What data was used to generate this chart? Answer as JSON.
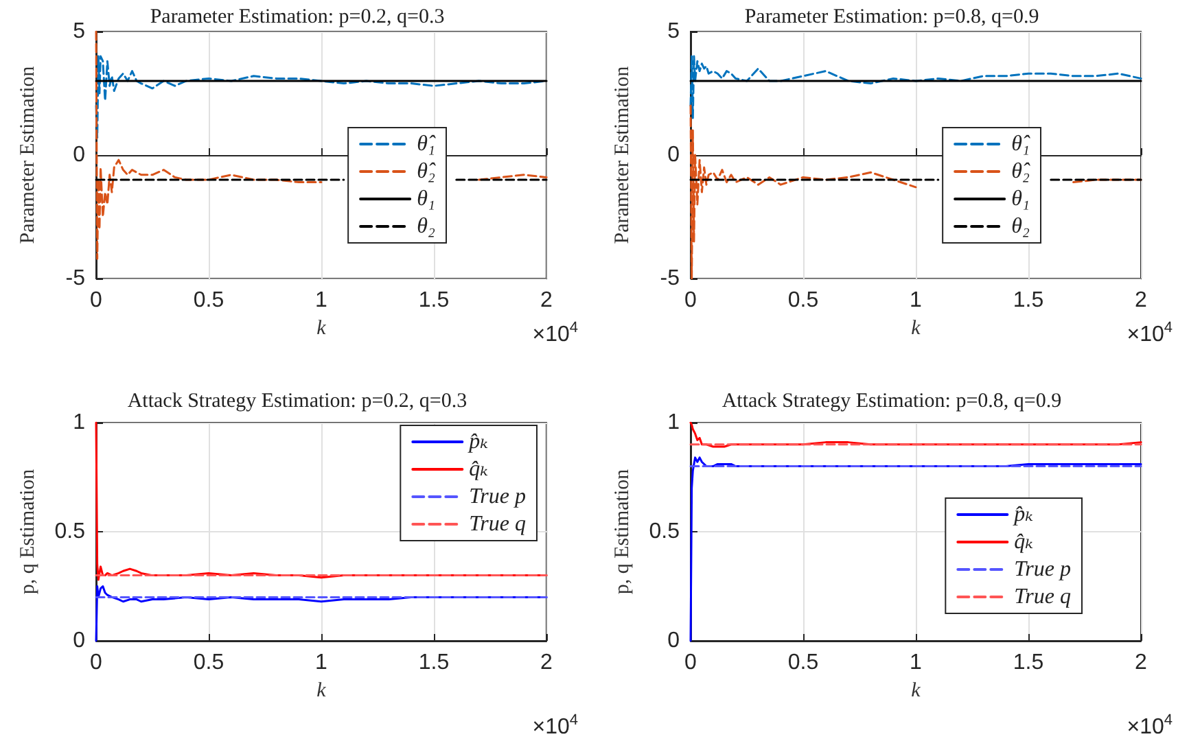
{
  "chart_data": [
    {
      "type": "line",
      "title": "Parameter Estimation: p=0.2, q=0.3",
      "xlabel": "k",
      "ylabel": "Parameter Estimation",
      "annotations": [
        "×10$^{4}$"
      ],
      "xlim": [
        0,
        2
      ],
      "xticks": [
        0,
        0.5,
        1,
        1.5,
        2
      ],
      "ylim": [
        -5,
        5
      ],
      "yticks": [
        -5,
        0,
        5
      ],
      "grid": true,
      "legend": "right",
      "marker": "none",
      "x": [
        0,
        0.005,
        0.01,
        0.015,
        0.02,
        0.03,
        0.04,
        0.05,
        0.06,
        0.07,
        0.08,
        0.1,
        0.12,
        0.14,
        0.16,
        0.18,
        0.2,
        0.25,
        0.3,
        0.35,
        0.4,
        0.5,
        0.6,
        0.7,
        0.8,
        0.9,
        1,
        1.1,
        1.2,
        1.3,
        1.4,
        1.5,
        1.6,
        1.7,
        1.8,
        1.9,
        2
      ],
      "series": [
        {
          "name": "θ̂₁",
          "color": "#0072bd",
          "line_style": "dashed",
          "values": [
            2,
            0.7,
            4,
            2.5,
            4,
            3.8,
            2.2,
            3.8,
            2.8,
            3.2,
            2.6,
            3.1,
            3.3,
            3.0,
            3.4,
            3.0,
            2.9,
            2.7,
            3.0,
            2.8,
            3.0,
            3.1,
            3.0,
            3.2,
            3.1,
            3.1,
            3.0,
            2.9,
            3.0,
            2.9,
            2.9,
            2.8,
            2.9,
            3.0,
            2.9,
            2.9,
            3.0
          ]
        },
        {
          "name": "θ̂₂",
          "color": "#d95319",
          "line_style": "dashed",
          "values": [
            5,
            -4.2,
            -1,
            -3,
            -0.5,
            -2.5,
            -1.5,
            -2,
            -0.8,
            -1.5,
            -0.5,
            -0.2,
            -0.6,
            -0.8,
            -0.6,
            -0.7,
            -0.8,
            -0.8,
            -0.6,
            -0.9,
            -1.0,
            -1.0,
            -0.8,
            -1.0,
            -1.0,
            -1.1,
            -1.1,
            null,
            null,
            null,
            null,
            null,
            null,
            -1.0,
            -0.9,
            -0.8,
            -0.9
          ]
        },
        {
          "name": "θ₁",
          "color": "#000000",
          "line_style": "solid",
          "values": [
            3,
            3,
            3,
            3,
            3,
            3,
            3,
            3,
            3,
            3,
            3,
            3,
            3,
            3,
            3,
            3,
            3,
            3,
            3,
            3,
            3,
            3,
            3,
            3,
            3,
            3,
            3,
            3,
            3,
            3,
            3,
            3,
            3,
            3,
            3,
            3,
            3
          ]
        },
        {
          "name": "θ₂",
          "color": "#000000",
          "line_style": "dashed",
          "values": [
            -1,
            -1,
            -1,
            -1,
            -1,
            -1,
            -1,
            -1,
            -1,
            -1,
            -1,
            -1,
            -1,
            -1,
            -1,
            -1,
            -1,
            -1,
            -1,
            -1,
            -1,
            -1,
            -1,
            -1,
            -1,
            -1,
            -1,
            -1,
            null,
            null,
            null,
            null,
            -1,
            -1,
            -1,
            -1,
            -1
          ]
        }
      ]
    },
    {
      "type": "line",
      "title": "Parameter Estimation: p=0.8, q=0.9",
      "xlabel": "k",
      "ylabel": "Parameter Estimation",
      "annotations": [
        "×10$^{4}$"
      ],
      "xlim": [
        0,
        2
      ],
      "xticks": [
        0,
        0.5,
        1,
        1.5,
        2
      ],
      "ylim": [
        -5,
        5
      ],
      "yticks": [
        -5,
        0,
        5
      ],
      "grid": true,
      "legend": "right",
      "marker": "none",
      "x": [
        0,
        0.005,
        0.01,
        0.015,
        0.02,
        0.03,
        0.04,
        0.05,
        0.06,
        0.07,
        0.08,
        0.1,
        0.12,
        0.14,
        0.16,
        0.18,
        0.2,
        0.25,
        0.3,
        0.35,
        0.4,
        0.5,
        0.6,
        0.7,
        0.8,
        0.9,
        1,
        1.1,
        1.2,
        1.3,
        1.4,
        1.5,
        1.6,
        1.7,
        1.8,
        1.9,
        2
      ],
      "series": [
        {
          "name": "θ̂₁",
          "color": "#0072bd",
          "line_style": "dashed",
          "values": [
            2,
            4,
            1.5,
            4,
            3,
            3.8,
            3.4,
            3.7,
            3.5,
            3.6,
            3.3,
            3.4,
            3.3,
            3.1,
            3.4,
            3.3,
            3.1,
            3.0,
            3.5,
            3.0,
            3.0,
            3.2,
            3.4,
            3.0,
            2.9,
            3.1,
            3.0,
            3.1,
            3.0,
            3.2,
            3.2,
            3.3,
            3.3,
            3.2,
            3.2,
            3.3,
            3.1
          ]
        },
        {
          "name": "θ̂₂",
          "color": "#d95319",
          "line_style": "dashed",
          "values": [
            2,
            -5,
            1,
            -3.5,
            0,
            -2,
            -0.2,
            -1.5,
            -0.5,
            -1.2,
            -0.8,
            -0.7,
            -1.0,
            -0.6,
            -1.1,
            -0.8,
            -1.1,
            -0.9,
            -1.2,
            -0.9,
            -1.2,
            -0.9,
            -1.0,
            -0.9,
            -0.7,
            -1.0,
            -1.3,
            null,
            null,
            null,
            null,
            null,
            null,
            -1.1,
            -1.0,
            -1.0,
            -1.0
          ]
        },
        {
          "name": "θ₁",
          "color": "#000000",
          "line_style": "solid",
          "values": [
            3,
            3,
            3,
            3,
            3,
            3,
            3,
            3,
            3,
            3,
            3,
            3,
            3,
            3,
            3,
            3,
            3,
            3,
            3,
            3,
            3,
            3,
            3,
            3,
            3,
            3,
            3,
            3,
            3,
            3,
            3,
            3,
            3,
            3,
            3,
            3,
            3
          ]
        },
        {
          "name": "θ₂",
          "color": "#000000",
          "line_style": "dashed",
          "values": [
            -1,
            -1,
            -1,
            -1,
            -1,
            -1,
            -1,
            -1,
            -1,
            -1,
            -1,
            -1,
            -1,
            -1,
            -1,
            -1,
            -1,
            -1,
            -1,
            -1,
            -1,
            -1,
            -1,
            -1,
            -1,
            -1,
            -1,
            -1,
            null,
            null,
            null,
            null,
            -1,
            -1,
            -1,
            -1,
            -1
          ]
        }
      ]
    },
    {
      "type": "line",
      "title": "Attack Strategy Estimation: p=0.2, q=0.3",
      "xlabel": "k",
      "ylabel": "p, q Estimation",
      "annotations": [
        "×10$^{4}$"
      ],
      "xlim": [
        0,
        2
      ],
      "xticks": [
        0,
        0.5,
        1,
        1.5,
        2
      ],
      "ylim": [
        0,
        1
      ],
      "yticks": [
        0,
        0.5,
        1
      ],
      "grid": true,
      "legend": "top right",
      "marker": "none",
      "x": [
        0,
        0.005,
        0.01,
        0.02,
        0.03,
        0.04,
        0.05,
        0.07,
        0.1,
        0.12,
        0.15,
        0.18,
        0.2,
        0.25,
        0.3,
        0.4,
        0.5,
        0.6,
        0.7,
        0.8,
        0.9,
        1,
        1.1,
        1.2,
        1.3,
        1.4,
        1.5,
        1.6,
        1.7,
        1.8,
        1.9,
        2
      ],
      "series": [
        {
          "name": "p̂ₖ",
          "color": "#0000ff",
          "line_style": "solid",
          "values": [
            0,
            0.25,
            0.2,
            0.24,
            0.25,
            0.22,
            0.21,
            0.2,
            0.19,
            0.18,
            0.19,
            0.19,
            0.18,
            0.19,
            0.19,
            0.2,
            0.19,
            0.2,
            0.19,
            0.19,
            0.19,
            0.18,
            0.19,
            0.19,
            0.19,
            0.2,
            0.2,
            0.2,
            0.2,
            0.2,
            0.2,
            0.2
          ]
        },
        {
          "name": "q̂ₖ",
          "color": "#ff0000",
          "line_style": "solid",
          "values": [
            1,
            0.35,
            0.28,
            0.34,
            0.3,
            0.3,
            0.31,
            0.3,
            0.31,
            0.32,
            0.33,
            0.32,
            0.31,
            0.3,
            0.3,
            0.3,
            0.31,
            0.3,
            0.31,
            0.3,
            0.3,
            0.29,
            0.3,
            0.3,
            0.3,
            0.3,
            0.3,
            0.3,
            0.3,
            0.3,
            0.3,
            0.3
          ]
        },
        {
          "name": "True p",
          "color": "#5555ff",
          "line_style": "dashed",
          "values": [
            0.2,
            0.2,
            0.2,
            0.2,
            0.2,
            0.2,
            0.2,
            0.2,
            0.2,
            0.2,
            0.2,
            0.2,
            0.2,
            0.2,
            0.2,
            0.2,
            0.2,
            0.2,
            0.2,
            0.2,
            0.2,
            0.2,
            0.2,
            0.2,
            0.2,
            0.2,
            0.2,
            0.2,
            0.2,
            0.2,
            0.2,
            0.2
          ]
        },
        {
          "name": "True q",
          "color": "#ff5555",
          "line_style": "dashed",
          "values": [
            0.3,
            0.3,
            0.3,
            0.3,
            0.3,
            0.3,
            0.3,
            0.3,
            0.3,
            0.3,
            0.3,
            0.3,
            0.3,
            0.3,
            0.3,
            0.3,
            0.3,
            0.3,
            0.3,
            0.3,
            0.3,
            0.3,
            0.3,
            0.3,
            0.3,
            0.3,
            0.3,
            0.3,
            0.3,
            0.3,
            0.3,
            0.3
          ]
        }
      ]
    },
    {
      "type": "line",
      "title": "Attack Strategy Estimation: p=0.8, q=0.9",
      "xlabel": "k",
      "ylabel": "p, q Estimation",
      "annotations": [
        "×10$^{4}$"
      ],
      "xlim": [
        0,
        2
      ],
      "xticks": [
        0,
        0.5,
        1,
        1.5,
        2
      ],
      "ylim": [
        0,
        1
      ],
      "yticks": [
        0,
        0.5,
        1
      ],
      "grid": true,
      "legend": "right",
      "marker": "none",
      "x": [
        0,
        0.005,
        0.01,
        0.02,
        0.03,
        0.04,
        0.05,
        0.07,
        0.1,
        0.12,
        0.15,
        0.18,
        0.2,
        0.25,
        0.3,
        0.4,
        0.5,
        0.6,
        0.7,
        0.8,
        0.9,
        1,
        1.1,
        1.2,
        1.3,
        1.4,
        1.5,
        1.6,
        1.7,
        1.8,
        1.9,
        2
      ],
      "series": [
        {
          "name": "p̂ₖ",
          "color": "#0000ff",
          "line_style": "solid",
          "values": [
            0,
            0.7,
            0.78,
            0.84,
            0.82,
            0.84,
            0.82,
            0.8,
            0.8,
            0.81,
            0.81,
            0.81,
            0.8,
            0.8,
            0.8,
            0.8,
            0.8,
            0.8,
            0.8,
            0.8,
            0.8,
            0.8,
            0.8,
            0.8,
            0.8,
            0.8,
            0.81,
            0.81,
            0.81,
            0.81,
            0.81,
            0.81
          ]
        },
        {
          "name": "q̂ₖ",
          "color": "#ff0000",
          "line_style": "solid",
          "values": [
            1,
            0.99,
            0.97,
            0.95,
            0.92,
            0.93,
            0.9,
            0.9,
            0.89,
            0.89,
            0.89,
            0.9,
            0.9,
            0.9,
            0.9,
            0.9,
            0.9,
            0.91,
            0.91,
            0.9,
            0.9,
            0.9,
            0.9,
            0.9,
            0.9,
            0.9,
            0.9,
            0.9,
            0.9,
            0.9,
            0.9,
            0.91
          ]
        },
        {
          "name": "True p",
          "color": "#5555ff",
          "line_style": "dashed",
          "values": [
            0.8,
            0.8,
            0.8,
            0.8,
            0.8,
            0.8,
            0.8,
            0.8,
            0.8,
            0.8,
            0.8,
            0.8,
            0.8,
            0.8,
            0.8,
            0.8,
            0.8,
            0.8,
            0.8,
            0.8,
            0.8,
            0.8,
            0.8,
            0.8,
            0.8,
            0.8,
            0.8,
            0.8,
            0.8,
            0.8,
            0.8,
            0.8
          ]
        },
        {
          "name": "True q",
          "color": "#ff5555",
          "line_style": "dashed",
          "values": [
            0.9,
            0.9,
            0.9,
            0.9,
            0.9,
            0.9,
            0.9,
            0.9,
            0.9,
            0.9,
            0.9,
            0.9,
            0.9,
            0.9,
            0.9,
            0.9,
            0.9,
            0.9,
            0.9,
            0.9,
            0.9,
            0.9,
            0.9,
            0.9,
            0.9,
            0.9,
            0.9,
            0.9,
            0.9,
            0.9,
            0.9,
            0.9
          ]
        }
      ]
    }
  ]
}
